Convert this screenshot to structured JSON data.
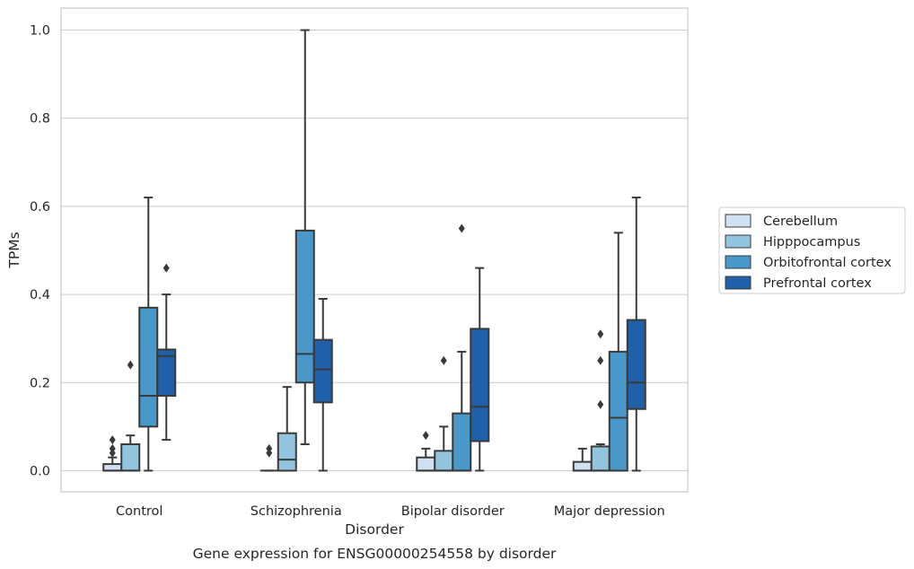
{
  "caption": "Gene expression for ENSG00000254558 by disorder",
  "chart_data": {
    "type": "box",
    "title": "",
    "xlabel": "Disorder",
    "ylabel": "TPMs",
    "ylim": [
      -0.048,
      1.05
    ],
    "yticks": [
      "0.0",
      "0.2",
      "0.4",
      "0.6",
      "0.8",
      "1.0"
    ],
    "grid": "horizontal",
    "legend_position": "right (outside)",
    "categories": [
      "Control",
      "Schizophrenia",
      "Bipolar disorder",
      "Major depression"
    ],
    "series": [
      {
        "name": "Cerebellum",
        "color": "#cfe1f2",
        "boxes": [
          {
            "low": 0.0,
            "q1": 0.0,
            "median": 0.0,
            "q3": 0.015,
            "high": 0.03,
            "outliers": [
              0.04,
              0.05,
              0.07
            ]
          },
          {
            "low": 0.0,
            "q1": 0.0,
            "median": 0.0,
            "q3": 0.0,
            "high": 0.0,
            "outliers": [
              0.04,
              0.05
            ]
          },
          {
            "low": 0.0,
            "q1": 0.0,
            "median": 0.0,
            "q3": 0.03,
            "high": 0.05,
            "outliers": [
              0.08
            ]
          },
          {
            "low": 0.0,
            "q1": 0.0,
            "median": 0.0,
            "q3": 0.02,
            "high": 0.05,
            "outliers": []
          }
        ]
      },
      {
        "name": "Hipppocampus",
        "color": "#93c4de",
        "boxes": [
          {
            "low": 0.0,
            "q1": 0.0,
            "median": 0.0,
            "q3": 0.06,
            "high": 0.08,
            "outliers": [
              0.24
            ]
          },
          {
            "low": 0.0,
            "q1": 0.0,
            "median": 0.025,
            "q3": 0.085,
            "high": 0.19,
            "outliers": []
          },
          {
            "low": 0.0,
            "q1": 0.0,
            "median": 0.0,
            "q3": 0.045,
            "high": 0.1,
            "outliers": [
              0.25
            ]
          },
          {
            "low": 0.0,
            "q1": 0.0,
            "median": 0.0,
            "q3": 0.055,
            "high": 0.06,
            "outliers": [
              0.15,
              0.25,
              0.31
            ]
          }
        ]
      },
      {
        "name": "Orbitofrontal cortex",
        "color": "#4a98c9",
        "boxes": [
          {
            "low": 0.0,
            "q1": 0.1,
            "median": 0.17,
            "q3": 0.37,
            "high": 0.62,
            "outliers": []
          },
          {
            "low": 0.06,
            "q1": 0.2,
            "median": 0.265,
            "q3": 0.545,
            "high": 1.0,
            "outliers": []
          },
          {
            "low": 0.0,
            "q1": 0.0,
            "median": 0.0,
            "q3": 0.13,
            "high": 0.27,
            "outliers": [
              0.55
            ]
          },
          {
            "low": 0.0,
            "q1": 0.0,
            "median": 0.12,
            "q3": 0.27,
            "high": 0.54,
            "outliers": []
          }
        ]
      },
      {
        "name": "Prefrontal cortex",
        "color": "#2060a8",
        "boxes": [
          {
            "low": 0.07,
            "q1": 0.17,
            "median": 0.26,
            "q3": 0.275,
            "high": 0.4,
            "outliers": [
              0.46
            ]
          },
          {
            "low": 0.0,
            "q1": 0.155,
            "median": 0.23,
            "q3": 0.297,
            "high": 0.39,
            "outliers": []
          },
          {
            "low": 0.0,
            "q1": 0.067,
            "median": 0.145,
            "q3": 0.322,
            "high": 0.46,
            "outliers": []
          },
          {
            "low": 0.0,
            "q1": 0.14,
            "median": 0.2,
            "q3": 0.342,
            "high": 0.62,
            "outliers": []
          }
        ]
      }
    ]
  }
}
